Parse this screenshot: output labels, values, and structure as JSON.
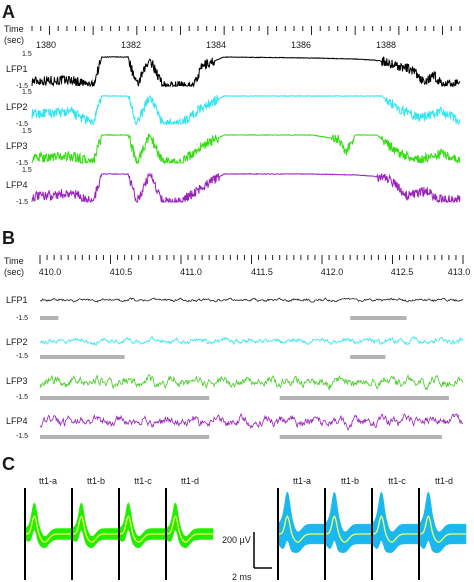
{
  "panels": {
    "A": {
      "letter": "A",
      "time_label": [
        "Time",
        "(sec)"
      ],
      "tick_labels": [
        "1380",
        "1382",
        "1384",
        "1386",
        "1388"
      ],
      "channels": [
        {
          "label": "LFP1",
          "ymax": "1.5",
          "ymin": "-1.5",
          "color": "#000000"
        },
        {
          "label": "LFP2",
          "ymax": "1.5",
          "ymin": "-1.5",
          "color": "#2ee6f0"
        },
        {
          "label": "LFP3",
          "ymax": "1.5",
          "ymin": "-1.5",
          "color": "#33dd11"
        },
        {
          "label": "LFP4",
          "ymax": "1.5",
          "ymin": "-1.5",
          "color": "#9922bb"
        }
      ]
    },
    "B": {
      "letter": "B",
      "time_label": [
        "Time",
        "(sec)"
      ],
      "tick_labels": [
        "410.0",
        "410.5",
        "411.0",
        "411.5",
        "412.0",
        "412.5",
        "413.0"
      ],
      "channels": [
        {
          "label": "LFP1",
          "ymin": "-1.5",
          "color": "#222222"
        },
        {
          "label": "LFP2",
          "ymin": "-1.5",
          "color": "#2ee6f0"
        },
        {
          "label": "LFP3",
          "ymin": "-1.5",
          "color": "#44cc22"
        },
        {
          "label": "LFP4",
          "ymin": "-1.5",
          "color": "#9922bb"
        }
      ]
    },
    "C": {
      "letter": "C",
      "left_group": {
        "labels": [
          "tt1-a",
          "tt1-b",
          "tt1-c",
          "tt1-d"
        ],
        "fill_color": "#22ee00",
        "mean_color": "#eeff66"
      },
      "right_group": {
        "labels": [
          "tt1-a",
          "tt1-b",
          "tt1-c",
          "tt1-d"
        ],
        "fill_color": "#1ab8ee",
        "mean_color": "#eeff66"
      },
      "scale_voltage": "200 µV",
      "scale_time": "2 ms"
    }
  },
  "chart_data": [
    {
      "type": "line",
      "panel": "A",
      "xlabel": "Time (sec)",
      "xlim": [
        1379.6,
        1389.4
      ],
      "xticks": [
        1380,
        1382,
        1384,
        1386,
        1388
      ],
      "ylim": [
        -1.5,
        1.5
      ],
      "series": [
        {
          "name": "LFP1",
          "color": "#000000",
          "x": [
            1379.6,
            1380.5,
            1381.0,
            1381.2,
            1381.8,
            1382.0,
            1382.3,
            1382.6,
            1383.0,
            1383.3,
            1383.5,
            1384.0,
            1385.0,
            1386.0,
            1387.0,
            1387.4,
            1387.6,
            1387.9,
            1388.3,
            1388.6,
            1388.8,
            1389.0,
            1389.4
          ],
          "y": [
            -1.0,
            -0.9,
            -1.5,
            1.4,
            1.4,
            -1.5,
            1.2,
            -1.5,
            -1.5,
            -1.5,
            0.5,
            1.4,
            1.35,
            1.3,
            1.2,
            1.1,
            1.0,
            0.6,
            0.1,
            -1.2,
            -0.4,
            -1.4,
            -1.3
          ]
        },
        {
          "name": "LFP2",
          "color": "#2ee6f0",
          "x": [
            1379.6,
            1380.5,
            1381.0,
            1381.2,
            1381.8,
            1382.0,
            1382.3,
            1382.6,
            1383.0,
            1383.5,
            1384.0,
            1385.0,
            1386.0,
            1387.0,
            1387.6,
            1388.0,
            1388.5,
            1389.0,
            1389.4
          ],
          "y": [
            -0.5,
            -0.3,
            -1.5,
            1.3,
            1.3,
            -1.5,
            1.3,
            -1.5,
            -1.5,
            0.2,
            1.3,
            1.3,
            1.3,
            1.3,
            1.3,
            0.0,
            -0.9,
            -0.2,
            -1.3
          ]
        },
        {
          "name": "LFP3",
          "color": "#33dd11",
          "x": [
            1379.6,
            1380.5,
            1381.0,
            1381.2,
            1381.8,
            1382.0,
            1382.3,
            1382.6,
            1383.0,
            1383.5,
            1384.0,
            1385.0,
            1386.0,
            1386.6,
            1386.8,
            1387.0,
            1387.5,
            1388.0,
            1388.5,
            1389.0,
            1389.4
          ],
          "y": [
            -1.0,
            -0.8,
            -1.5,
            1.3,
            1.3,
            -1.5,
            1.3,
            -1.5,
            -1.5,
            0.2,
            1.3,
            1.3,
            1.3,
            0.9,
            -0.4,
            1.3,
            1.3,
            -0.6,
            -1.2,
            -0.5,
            -1.3
          ]
        },
        {
          "name": "LFP4",
          "color": "#9922bb",
          "x": [
            1379.6,
            1380.5,
            1381.0,
            1381.2,
            1381.8,
            1382.0,
            1382.3,
            1382.6,
            1383.0,
            1383.5,
            1384.0,
            1385.0,
            1386.0,
            1387.0,
            1387.4,
            1387.8,
            1388.2,
            1388.6,
            1389.0,
            1389.4
          ],
          "y": [
            -1.0,
            -0.6,
            -1.5,
            1.3,
            1.3,
            -1.5,
            1.3,
            -1.5,
            -1.5,
            0.0,
            1.3,
            1.3,
            1.3,
            1.2,
            1.1,
            0.7,
            -0.8,
            -0.4,
            -1.3,
            -1.3
          ]
        }
      ]
    },
    {
      "type": "line",
      "panel": "B",
      "xlabel": "Time (sec)",
      "xlim": [
        410.0,
        413.0
      ],
      "xticks": [
        410.0,
        410.5,
        411.0,
        411.5,
        412.0,
        412.5,
        413.0
      ],
      "ylim": [
        -1.5,
        1.5
      ],
      "series": [
        {
          "name": "LFP1",
          "color": "#222222",
          "amplitude": 0.2,
          "baseline": 0.0
        },
        {
          "name": "LFP2",
          "color": "#2ee6f0",
          "amplitude": 0.4,
          "baseline": 0.0
        },
        {
          "name": "LFP3",
          "color": "#44cc22",
          "amplitude": 0.7,
          "baseline": 0.0
        },
        {
          "name": "LFP4",
          "color": "#9922bb",
          "amplitude": 0.7,
          "baseline": 0.0
        }
      ],
      "epochs": [
        {
          "channel": "LFP1",
          "start": 410.0,
          "end": 410.13
        },
        {
          "channel": "LFP1",
          "start": 412.2,
          "end": 412.6
        },
        {
          "channel": "LFP2",
          "start": 410.0,
          "end": 410.6
        },
        {
          "channel": "LFP2",
          "start": 412.2,
          "end": 412.45
        },
        {
          "channel": "LFP3",
          "start": 410.0,
          "end": 411.2
        },
        {
          "channel": "LFP3",
          "start": 411.7,
          "end": 412.9
        },
        {
          "channel": "LFP4",
          "start": 410.0,
          "end": 411.2
        },
        {
          "channel": "LFP4",
          "start": 411.7,
          "end": 412.85
        }
      ]
    },
    {
      "type": "line",
      "panel": "C",
      "series": [
        {
          "name": "tt1-a",
          "group": "left",
          "color": "#22ee00"
        },
        {
          "name": "tt1-b",
          "group": "left",
          "color": "#22ee00"
        },
        {
          "name": "tt1-c",
          "group": "left",
          "color": "#22ee00"
        },
        {
          "name": "tt1-d",
          "group": "left",
          "color": "#22ee00"
        },
        {
          "name": "tt1-a",
          "group": "right",
          "color": "#1ab8ee"
        },
        {
          "name": "tt1-b",
          "group": "right",
          "color": "#1ab8ee"
        },
        {
          "name": "tt1-c",
          "group": "right",
          "color": "#1ab8ee"
        },
        {
          "name": "tt1-d",
          "group": "right",
          "color": "#1ab8ee"
        }
      ]
    }
  ]
}
